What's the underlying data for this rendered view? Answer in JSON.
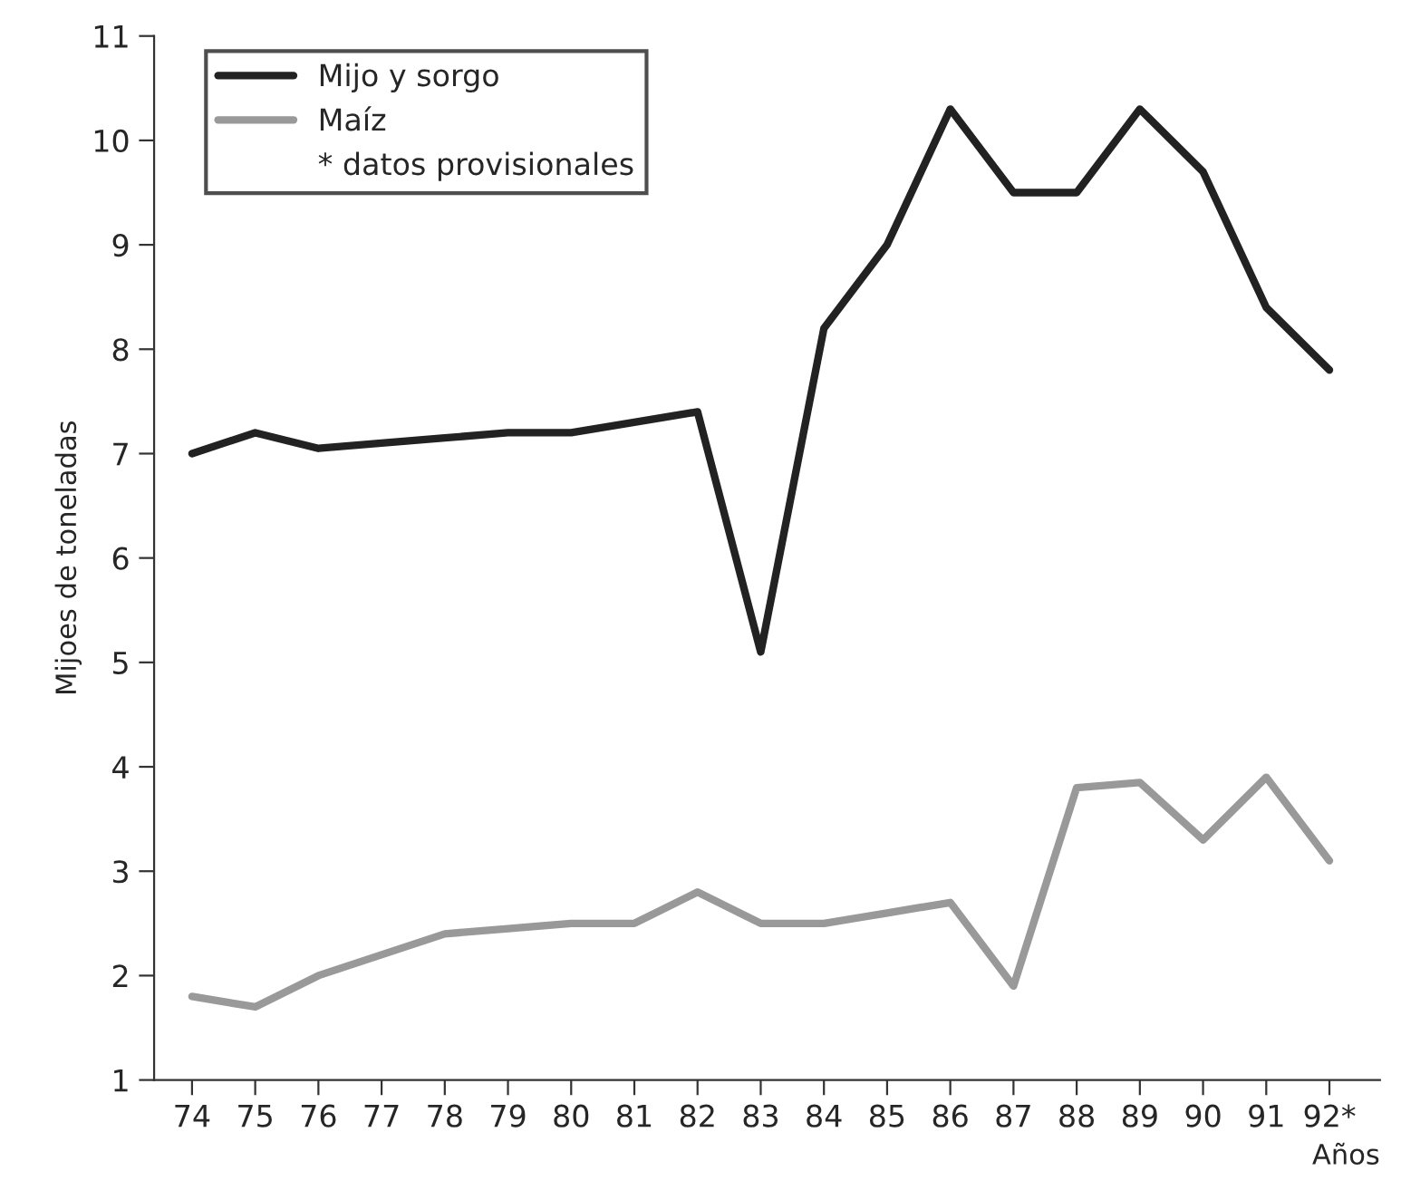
{
  "chart_data": {
    "type": "line",
    "xlabel": "Años",
    "ylabel": "Mijoes de toneladas",
    "categories": [
      "74",
      "75",
      "76",
      "77",
      "78",
      "79",
      "80",
      "81",
      "82",
      "83",
      "84",
      "85",
      "86",
      "87",
      "88",
      "89",
      "90",
      "91",
      "92*"
    ],
    "series": [
      {
        "name": "Mijo y sorgo",
        "color": "#222222",
        "values": [
          7.0,
          7.2,
          7.05,
          7.1,
          7.15,
          7.2,
          7.2,
          7.3,
          7.4,
          5.1,
          8.2,
          9.0,
          10.3,
          9.5,
          9.5,
          10.3,
          9.7,
          8.4,
          7.8
        ]
      },
      {
        "name": "Maíz",
        "color": "#999999",
        "values": [
          1.8,
          1.7,
          2.0,
          2.2,
          2.4,
          2.45,
          2.5,
          2.5,
          2.8,
          2.5,
          2.5,
          2.6,
          2.7,
          1.9,
          3.8,
          3.85,
          3.3,
          3.9,
          3.1
        ]
      }
    ],
    "ylim": [
      1,
      11
    ],
    "yticks": [
      1,
      2,
      3,
      4,
      5,
      6,
      7,
      8,
      9,
      10,
      11
    ],
    "annotations": [
      "* datos provisionales"
    ],
    "legend": "top left",
    "grid": false,
    "marker": "none",
    "line_style": "solid"
  }
}
